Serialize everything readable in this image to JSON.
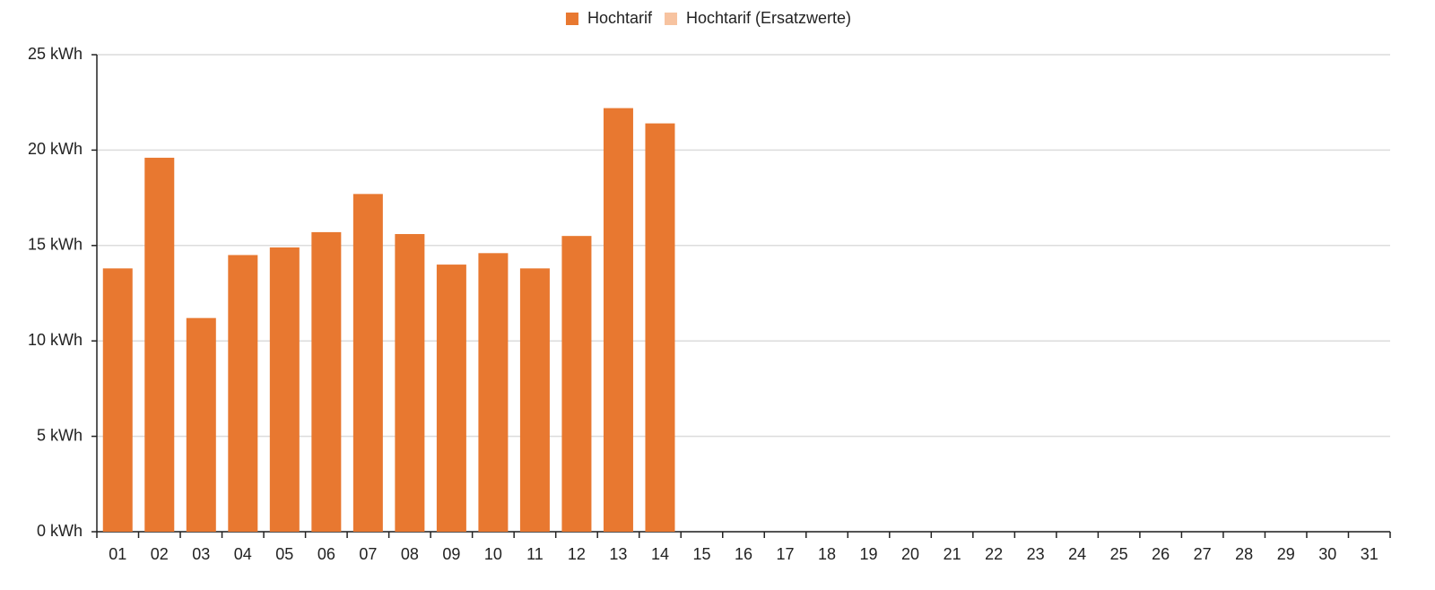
{
  "chart_data": {
    "type": "bar",
    "stacked": true,
    "categories": [
      "01",
      "02",
      "03",
      "04",
      "05",
      "06",
      "07",
      "08",
      "09",
      "10",
      "11",
      "12",
      "13",
      "14",
      "15",
      "16",
      "17",
      "18",
      "19",
      "20",
      "21",
      "22",
      "23",
      "24",
      "25",
      "26",
      "27",
      "28",
      "29",
      "30",
      "31"
    ],
    "series": [
      {
        "name": "Hochtarif",
        "color": "#e87830",
        "values": [
          13.8,
          19.6,
          11.2,
          14.5,
          14.9,
          15.7,
          17.7,
          15.6,
          14.0,
          14.6,
          13.8,
          15.5,
          22.2,
          21.4,
          null,
          null,
          null,
          null,
          null,
          null,
          null,
          null,
          null,
          null,
          null,
          null,
          null,
          null,
          null,
          null,
          null
        ]
      },
      {
        "name": "Hochtarif (Ersatzwerte)",
        "color": "#f7c3a0",
        "values": [
          null,
          null,
          null,
          null,
          null,
          null,
          null,
          null,
          null,
          null,
          null,
          null,
          null,
          null,
          null,
          null,
          null,
          null,
          null,
          null,
          null,
          null,
          null,
          null,
          null,
          null,
          null,
          null,
          null,
          null,
          null
        ]
      }
    ],
    "ylim": [
      0,
      25
    ],
    "yticks": [
      {
        "value": 0,
        "label": "0 kWh"
      },
      {
        "value": 5,
        "label": "5 kWh"
      },
      {
        "value": 10,
        "label": "10 kWh"
      },
      {
        "value": 15,
        "label": "15 kWh"
      },
      {
        "value": 20,
        "label": "20 kWh"
      },
      {
        "value": 25,
        "label": "25 kWh"
      }
    ],
    "grid": true,
    "legend": "top"
  }
}
